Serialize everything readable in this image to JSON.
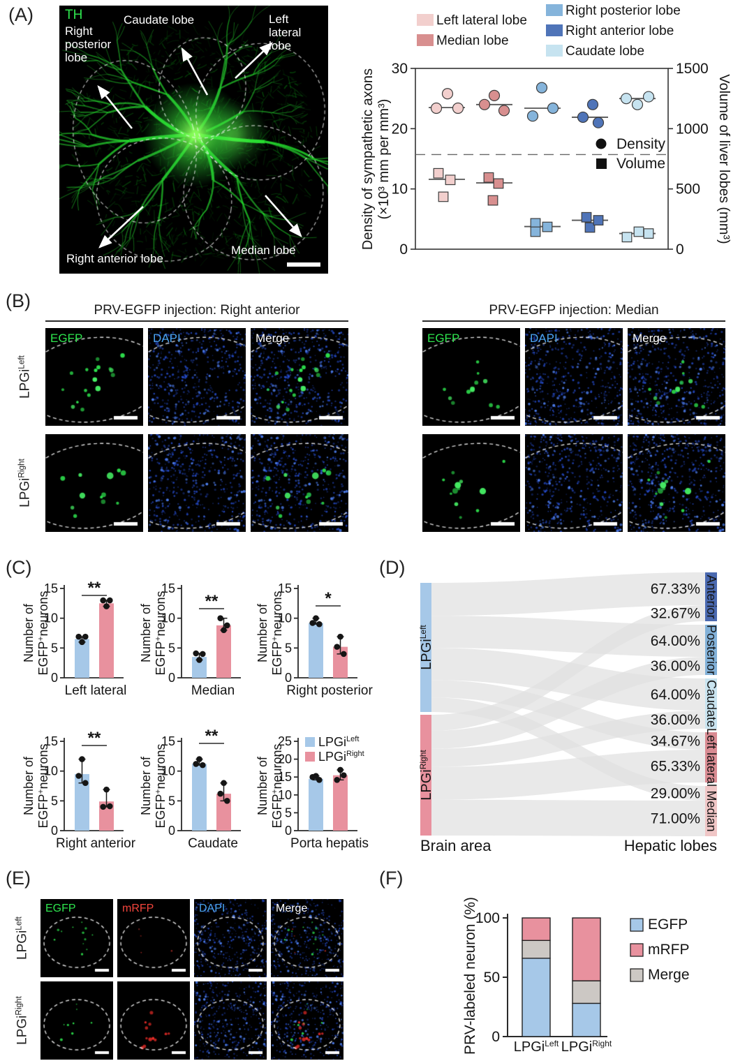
{
  "panels": {
    "a": {
      "tag": "(A)",
      "stain": "TH",
      "lobes": {
        "right_posterior": "Right\nposterior\nlobe",
        "caudate": "Caudate lobe",
        "left_lateral": "Left\nlateral\nlobe",
        "right_anterior": "Right anterior lobe",
        "median": "Median lobe"
      }
    },
    "b": {
      "tag": "(B)",
      "groups": [
        {
          "title": "PRV-EGFP injection: Right anterior"
        },
        {
          "title": "PRV-EGFP injection: Median"
        }
      ],
      "rows": [
        {
          "base": "LPGi",
          "sup": "Left"
        },
        {
          "base": "LPGi",
          "sup": "Right"
        }
      ],
      "channels": [
        {
          "label": "EGFP",
          "color": "#2ee54e"
        },
        {
          "label": "DAPI",
          "color": "#4aa3ef"
        },
        {
          "label": "Merge",
          "color": "#ffffff"
        }
      ]
    },
    "c": {
      "tag": "(C)"
    },
    "d": {
      "tag": "(D)"
    },
    "e": {
      "tag": "(E)",
      "rows": [
        {
          "base": "LPGi",
          "sup": "Left"
        },
        {
          "base": "LPGi",
          "sup": "Right"
        }
      ],
      "channels": [
        {
          "label": "EGFP",
          "color": "#2ee54e"
        },
        {
          "label": "mRFP",
          "color": "#f3453c"
        },
        {
          "label": "DAPI",
          "color": "#4aa3ef"
        },
        {
          "label": "Merge",
          "color": "#ffffff"
        }
      ]
    },
    "f": {
      "tag": "(F)"
    }
  },
  "chart_data": {
    "axon_density_and_volume": {
      "type": "scatter",
      "ylabel_left_lines": [
        "Density of sympathetic axons",
        "(×10³ mm per mm³)"
      ],
      "ylabel_right": "Volume of liver lobes (mm³)",
      "yticks_left": [
        0,
        10,
        20,
        30
      ],
      "ylim_left": [
        0,
        30
      ],
      "yticks_right": [
        0,
        500,
        1000,
        1500
      ],
      "ylim_right": [
        0,
        1500
      ],
      "separator_line_y_left_units": 15.7,
      "marker_legend": [
        {
          "marker": "circle",
          "label": "Density"
        },
        {
          "marker": "square",
          "label": "Volume"
        }
      ],
      "legend_lobes": [
        {
          "label": "Left lateral lobe",
          "color": "#f2cfcd"
        },
        {
          "label": "Median lobe",
          "color": "#d88f8f"
        },
        {
          "label": "Right posterior lobe",
          "color": "#85b4db"
        },
        {
          "label": "Right anterior lobe",
          "color": "#4f74b8"
        },
        {
          "label": "Caudate lobe",
          "color": "#c6e3f0"
        }
      ],
      "groups": [
        {
          "name": "Left lateral lobe",
          "color": "#f2cfcd",
          "density": [
            23.4,
            25.8,
            23.4
          ],
          "density_mean": 23.5,
          "volume_mm3": [
            630,
            575,
            435
          ],
          "volume_mean_mm3": 580
        },
        {
          "name": "Median lobe",
          "color": "#d88f8f",
          "density": [
            24.0,
            25.5,
            23.0
          ],
          "density_mean": 24.0,
          "volume_mm3": [
            595,
            545,
            405
          ],
          "volume_mean_mm3": 550
        },
        {
          "name": "Right posterior lobe",
          "color": "#85b4db",
          "density": [
            22.1,
            26.8,
            23.4
          ],
          "density_mean": 23.4,
          "volume_mm3": [
            215,
            145,
            185
          ],
          "volume_mean_mm3": 188
        },
        {
          "name": "Right anterior lobe",
          "color": "#4f74b8",
          "density": [
            21.9,
            24.0,
            21.0
          ],
          "density_mean": 21.9,
          "volume_mm3": [
            265,
            180,
            240
          ],
          "volume_mean_mm3": 240
        },
        {
          "name": "Caudate lobe",
          "color": "#c6e3f0",
          "density": [
            25.0,
            24.0,
            25.3
          ],
          "density_mean": 25.0,
          "volume_mm3": [
            100,
            145,
            130
          ],
          "volume_mean_mm3": 130
        }
      ]
    },
    "egfp_neuron_counts": {
      "type": "bar",
      "ylabel": {
        "line1": "Number of",
        "line2_pre": "EGFP",
        "line2_sup": "+",
        "line2_post": "neurons"
      },
      "series": [
        {
          "base": "LPGi",
          "sup": "Left",
          "color": "#a6c8e8"
        },
        {
          "base": "LPGi",
          "sup": "Right",
          "color": "#e8919e"
        }
      ],
      "charts": [
        {
          "category": "Left lateral",
          "ymax": 15,
          "yticks": [
            0,
            5,
            10,
            15
          ],
          "significance": "**",
          "left": {
            "mean": 6.5,
            "dots": [
              6.9,
              6.9,
              6.0
            ]
          },
          "right": {
            "mean": 12.5,
            "dots": [
              13.0,
              13.0,
              12.0
            ]
          }
        },
        {
          "category": "Median",
          "ymax": 15,
          "yticks": [
            0,
            5,
            10,
            15
          ],
          "significance": "**",
          "left": {
            "mean": 3.5,
            "dots": [
              4.1,
              4.0,
              3.0
            ]
          },
          "right": {
            "mean": 8.8,
            "dots": [
              10.0,
              8.8,
              8.0
            ]
          }
        },
        {
          "category": "Right posterior",
          "ymax": 15,
          "yticks": [
            0,
            5,
            10,
            15
          ],
          "significance": "*",
          "left": {
            "mean": 9.2,
            "dots": [
              9.2,
              9.0,
              10.0
            ]
          },
          "right": {
            "mean": 5.2,
            "dots": [
              5.2,
              4.0,
              6.9
            ]
          }
        },
        {
          "category": "Right anterior",
          "ymax": 15,
          "yticks": [
            0,
            5,
            10,
            15
          ],
          "significance": "**",
          "left": {
            "mean": 9.5,
            "dots": [
              9.2,
              8.0,
              12.0
            ]
          },
          "right": {
            "mean": 4.9,
            "dots": [
              4.0,
              4.1,
              6.9
            ]
          }
        },
        {
          "category": "Caudate",
          "ymax": 15,
          "yticks": [
            0,
            5,
            10,
            15
          ],
          "significance": "**",
          "left": {
            "mean": 11.2,
            "dots": [
              11.2,
              11.0,
              12.0
            ]
          },
          "right": {
            "mean": 6.2,
            "dots": [
              6.2,
              5.0,
              8.0
            ]
          }
        },
        {
          "category": "Porta hepatis",
          "ymax": 25,
          "yticks": [
            0,
            5,
            10,
            15,
            20,
            25
          ],
          "significance": null,
          "left": {
            "mean": 14.5,
            "dots": [
              15.0,
              14.2,
              15.3
            ]
          },
          "right": {
            "mean": 15.5,
            "dots": [
              14.2,
              15.5,
              17.0
            ]
          }
        }
      ]
    },
    "brain_to_liver_sankey": {
      "type": "sankey",
      "left_axis_title": "Brain area",
      "right_axis_title": "Hepatic lobes",
      "sources": [
        {
          "base": "LPGi",
          "sup": "Left",
          "color": "#a6c8e8"
        },
        {
          "base": "LPGi",
          "sup": "Right",
          "color": "#e8919e"
        }
      ],
      "targets": [
        {
          "label": "Anterior",
          "color": "#4a69b0",
          "pct_from_lpgi_left": 67.33,
          "pct_from_lpgi_right": 32.67
        },
        {
          "label": "Posterior",
          "color": "#82b1d8",
          "pct_from_lpgi_left": 64.0,
          "pct_from_lpgi_right": 36.0
        },
        {
          "label": "Caudate",
          "color": "#c9e4f0",
          "pct_from_lpgi_left": 64.0,
          "pct_from_lpgi_right": 36.0
        },
        {
          "label": "Left lateral",
          "color": "#d98b92",
          "pct_from_lpgi_left": 34.67,
          "pct_from_lpgi_right": 65.33
        },
        {
          "label": "Median",
          "color": "#f0c6c6",
          "pct_from_lpgi_left": 29.0,
          "pct_from_lpgi_right": 71.0
        }
      ]
    },
    "prv_labeled_neuron_pct": {
      "type": "stacked_bar",
      "ylabel": "PRV-labeled neuron (%)",
      "yticks": [
        0,
        50,
        100
      ],
      "ylim": [
        0,
        100
      ],
      "categories": [
        {
          "base": "LPGi",
          "sup": "Left"
        },
        {
          "base": "LPGi",
          "sup": "Right"
        }
      ],
      "stack_order": [
        "EGFP",
        "Merge",
        "mRFP"
      ],
      "series": [
        {
          "name": "EGFP",
          "color": "#a6c8e8",
          "values": [
            66,
            28
          ]
        },
        {
          "name": "mRFP",
          "color": "#e8919e",
          "values": [
            19,
            53
          ]
        },
        {
          "name": "Merge",
          "color": "#ccc8c4",
          "values": [
            15,
            19
          ]
        }
      ]
    }
  }
}
